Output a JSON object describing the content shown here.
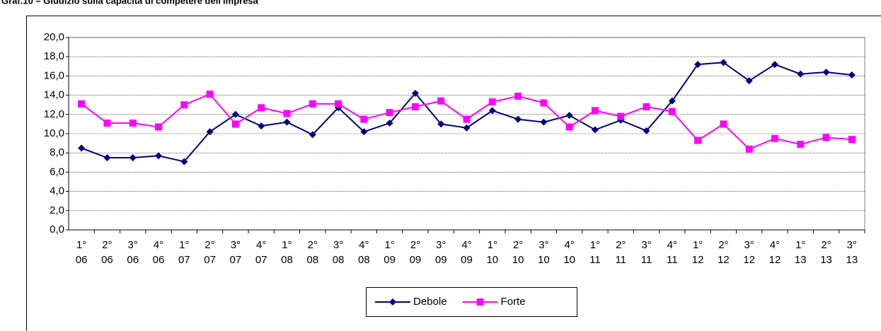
{
  "chart_data": {
    "type": "line",
    "title": "Graf.10 – Giudizio sulla capacità di competere dell'impresa",
    "categories": [
      "1°\n06",
      "2°\n06",
      "3°\n06",
      "4°\n06",
      "1°\n07",
      "2°\n07",
      "3°\n07",
      "4°\n07",
      "1°\n08",
      "2°\n08",
      "3°\n08",
      "4°\n08",
      "1°\n09",
      "2°\n09",
      "3°\n09",
      "4°\n09",
      "1°\n10",
      "2°\n10",
      "3°\n10",
      "4°\n10",
      "1°\n11",
      "2°\n11",
      "3°\n11",
      "4°\n11",
      "1°\n12",
      "2°\n12",
      "3°\n12",
      "4°\n12",
      "1°\n13",
      "2°\n13",
      "3°\n13"
    ],
    "series": [
      {
        "name": "Debole",
        "color": "#000080",
        "marker": "diamond",
        "values": [
          8.5,
          7.5,
          7.5,
          7.7,
          7.1,
          10.2,
          12.0,
          10.8,
          11.2,
          9.9,
          12.7,
          10.2,
          11.1,
          14.2,
          11.0,
          10.6,
          12.4,
          11.5,
          11.2,
          11.9,
          10.4,
          11.4,
          10.3,
          13.4,
          17.2,
          17.4,
          15.5,
          17.2,
          16.2,
          16.4,
          16.1
        ]
      },
      {
        "name": "Forte",
        "color": "#FF00FF",
        "marker": "square",
        "values": [
          13.1,
          11.1,
          11.1,
          10.7,
          13.0,
          14.1,
          11.0,
          12.7,
          12.1,
          13.1,
          13.1,
          11.5,
          12.2,
          12.8,
          13.4,
          11.5,
          13.3,
          13.9,
          13.2,
          10.7,
          12.4,
          11.8,
          12.8,
          12.3,
          9.3,
          11.0,
          8.4,
          9.5,
          8.9,
          9.6,
          9.4
        ]
      }
    ],
    "ylim": [
      0,
      20
    ],
    "yticks": [
      {
        "value": 0,
        "label": "0,0"
      },
      {
        "value": 2,
        "label": "2,0"
      },
      {
        "value": 4,
        "label": "4,0"
      },
      {
        "value": 6,
        "label": "6,0"
      },
      {
        "value": 8,
        "label": "8,0"
      },
      {
        "value": 10,
        "label": "10,0"
      },
      {
        "value": 12,
        "label": "12,0"
      },
      {
        "value": 14,
        "label": "14,0"
      },
      {
        "value": 16,
        "label": "16,0"
      },
      {
        "value": 18,
        "label": "18,0"
      },
      {
        "value": 20,
        "label": "20,0"
      }
    ],
    "grid": true
  }
}
